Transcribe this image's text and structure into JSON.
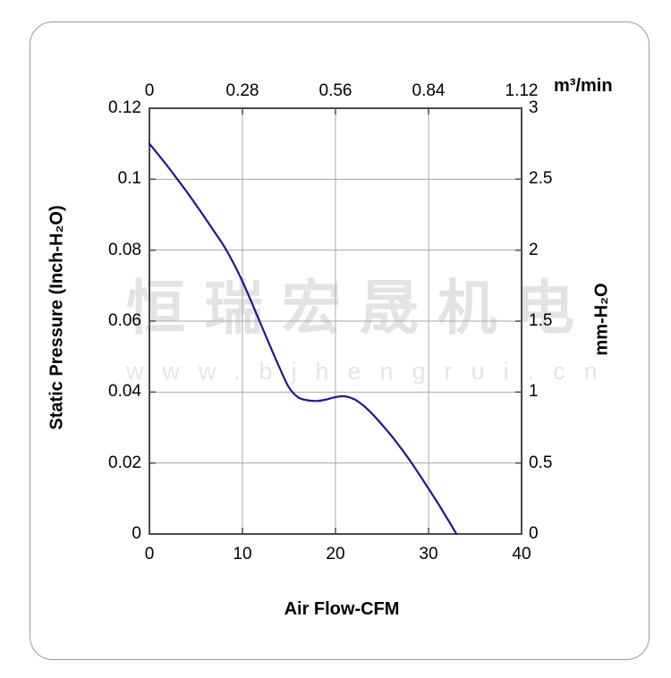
{
  "watermark": {
    "line1": "恒瑞宏晟机电",
    "line2": "www.bjhengrui.cn"
  },
  "chart_data": {
    "type": "line",
    "title": "",
    "grid": true,
    "curve_color": "#1b1b8f",
    "grid_color": "#a8a8a8",
    "axis_color": "#4a4a4a",
    "x_axis": {
      "label": "Air Flow-CFM",
      "range": [
        0,
        40
      ],
      "tick_values": [
        0,
        10,
        20,
        30,
        40
      ],
      "ticks": [
        "0",
        "10",
        "20",
        "30",
        "40"
      ]
    },
    "y_axis": {
      "label": "Static Pressure (Inch-H₂O)",
      "range": [
        0,
        0.12
      ],
      "tick_values": [
        0.12,
        0.1,
        0.08,
        0.06,
        0.04,
        0.02,
        0
      ],
      "ticks": [
        "0.12",
        "0.1",
        "0.08",
        "0.06",
        "0.04",
        "0.02",
        "0"
      ]
    },
    "top_axis": {
      "label": "m³/min",
      "range": [
        0,
        1.12
      ],
      "tick_values": [
        0,
        0.28,
        0.56,
        0.84,
        1.12
      ],
      "ticks": [
        "0",
        "0.28",
        "0.56",
        "0.84",
        "1.12"
      ]
    },
    "right_axis": {
      "label": "mm-H₂O",
      "range": [
        0,
        3
      ],
      "tick_values": [
        3,
        2.5,
        2,
        1.5,
        1,
        0.5,
        0
      ],
      "ticks": [
        "3",
        "2.5",
        "2",
        "1.5",
        "1",
        "0.5",
        "0"
      ]
    },
    "series": [
      {
        "name": "static-pressure-curve",
        "x": [
          0,
          1,
          2,
          3,
          4,
          5,
          6,
          7,
          8,
          9,
          10,
          11,
          12,
          13,
          14,
          15,
          16,
          17,
          18,
          19,
          20,
          21,
          22,
          23,
          24,
          25,
          26,
          27,
          28,
          29,
          30,
          31,
          32,
          33
        ],
        "y": [
          0.11,
          0.1068,
          0.1035,
          0.1,
          0.0965,
          0.0928,
          0.089,
          0.0851,
          0.0812,
          0.0765,
          0.0712,
          0.0652,
          0.059,
          0.0528,
          0.0468,
          0.0413,
          0.0385,
          0.0377,
          0.0375,
          0.0379,
          0.0386,
          0.0388,
          0.038,
          0.0362,
          0.0337,
          0.0308,
          0.0277,
          0.0243,
          0.0207,
          0.0168,
          0.0128,
          0.0087,
          0.0044,
          0.0
        ]
      }
    ]
  }
}
